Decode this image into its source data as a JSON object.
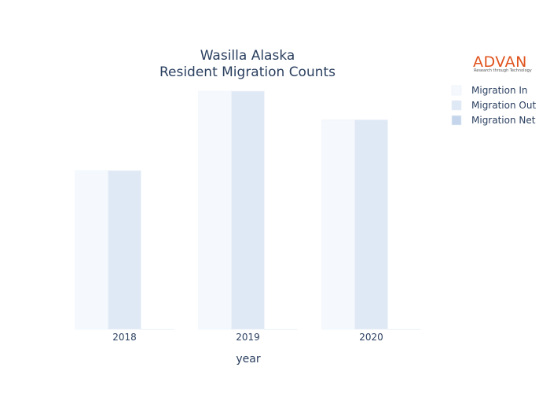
{
  "chart_data": {
    "type": "bar",
    "title": [
      "Wasilla Alaska",
      "Resident Migration Counts"
    ],
    "xlabel": "year",
    "ylabel": "",
    "categories": [
      "2018",
      "2019",
      "2020"
    ],
    "series": [
      {
        "name": "Migration In",
        "color": "#f5f9fd",
        "values": [
          1000,
          1500,
          1320
        ]
      },
      {
        "name": "Migration Out",
        "color": "#dfe9f5",
        "values": [
          1000,
          1500,
          1320
        ]
      },
      {
        "name": "Migration Net",
        "color": "#c5d6ec",
        "values": [
          0,
          0,
          0
        ]
      }
    ],
    "ylim": [
      0,
      1500
    ],
    "grid": false,
    "legend_position": "top-right"
  },
  "logo": {
    "text": "ADVAN",
    "tagline": "Research through Technology"
  }
}
